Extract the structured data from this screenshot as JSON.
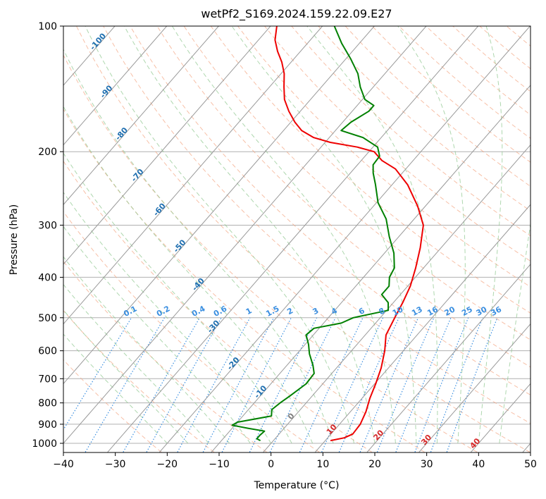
{
  "chart_data": {
    "type": "skew-t log-p",
    "title": "wetPf2_S169.2024.159.22.09.E27",
    "xlabel": "Temperature (°C)",
    "ylabel": "Pressure (hPa)",
    "xlim": [
      -40,
      50
    ],
    "ylim": [
      1050,
      100
    ],
    "y_scale": "log",
    "grid": true,
    "x_ticks": [
      -40,
      -30,
      -20,
      -10,
      0,
      10,
      20,
      30,
      40,
      50
    ],
    "y_ticks": [
      100,
      200,
      300,
      400,
      500,
      600,
      700,
      800,
      900,
      1000
    ],
    "colors": {
      "temperature": "#ee0000",
      "dewpoint": "#008000",
      "isotherm": "#9a9a9a",
      "dry_adiabat": "#f4a582",
      "moist_adiabat": "#93c993",
      "mixing_ratio": "#3b8fe0",
      "isotherm_label": "#1f6fb0",
      "mixing_label": "#3b8fe0",
      "theta_e_label": "#d62728"
    },
    "series": [
      {
        "name": "temperature",
        "points": [
          [
            11.0,
            985
          ],
          [
            13.2,
            970
          ],
          [
            14.2,
            950
          ],
          [
            14.0,
            900
          ],
          [
            13.0,
            840
          ],
          [
            11.5,
            780
          ],
          [
            10.2,
            720
          ],
          [
            8.6,
            660
          ],
          [
            6.4,
            600
          ],
          [
            4.0,
            550
          ],
          [
            2.8,
            500
          ],
          [
            1.8,
            460
          ],
          [
            0.5,
            420
          ],
          [
            -1.5,
            380
          ],
          [
            -4.0,
            340
          ],
          [
            -7.2,
            300
          ],
          [
            -11.5,
            270
          ],
          [
            -17.0,
            240
          ],
          [
            -22.0,
            220
          ],
          [
            -26.0,
            210
          ],
          [
            -27.5,
            205
          ],
          [
            -29.0,
            200
          ],
          [
            -33.0,
            195
          ],
          [
            -39.0,
            190
          ],
          [
            -43.0,
            185
          ],
          [
            -46.5,
            178
          ],
          [
            -49.2,
            170
          ],
          [
            -52.2,
            160
          ],
          [
            -55.0,
            150
          ],
          [
            -57.2,
            140
          ],
          [
            -59.4,
            130
          ],
          [
            -61.8,
            122
          ],
          [
            -64.4,
            115
          ],
          [
            -66.8,
            108
          ],
          [
            -68.8,
            100
          ]
        ]
      },
      {
        "name": "dewpoint",
        "points": [
          [
            -2.5,
            985
          ],
          [
            -3.5,
            975
          ],
          [
            -3.5,
            955
          ],
          [
            -3.3,
            935
          ],
          [
            -7.0,
            920
          ],
          [
            -10.5,
            905
          ],
          [
            -10.0,
            890
          ],
          [
            -4.5,
            860
          ],
          [
            -5.5,
            830
          ],
          [
            -5.0,
            800
          ],
          [
            -4.3,
            770
          ],
          [
            -3.2,
            720
          ],
          [
            -3.4,
            680
          ],
          [
            -5.0,
            650
          ],
          [
            -7.6,
            610
          ],
          [
            -9.3,
            580
          ],
          [
            -11.4,
            550
          ],
          [
            -11.0,
            530
          ],
          [
            -6.6,
            515
          ],
          [
            -5.2,
            500
          ],
          [
            0.3,
            480
          ],
          [
            -1.0,
            460
          ],
          [
            -3.6,
            440
          ],
          [
            -3.6,
            420
          ],
          [
            -5.0,
            400
          ],
          [
            -5.6,
            380
          ],
          [
            -8.2,
            350
          ],
          [
            -11.8,
            320
          ],
          [
            -15.4,
            290
          ],
          [
            -19.7,
            265
          ],
          [
            -23.2,
            240
          ],
          [
            -25.6,
            225
          ],
          [
            -27.0,
            215
          ],
          [
            -27.2,
            205
          ],
          [
            -29.1,
            195
          ],
          [
            -33.5,
            185
          ],
          [
            -38.9,
            178
          ],
          [
            -38.4,
            170
          ],
          [
            -36.8,
            160
          ],
          [
            -36.8,
            155
          ],
          [
            -39.5,
            150
          ],
          [
            -42.5,
            140
          ],
          [
            -45.2,
            130
          ],
          [
            -49.0,
            120
          ],
          [
            -53.4,
            110
          ],
          [
            -57.7,
            100
          ]
        ]
      }
    ],
    "isotherm_labels": [
      "-100",
      "-90",
      "-80",
      "-70",
      "-60",
      "-50",
      "-40",
      "-30",
      "-20",
      "-10",
      "0",
      "10",
      "20",
      "30",
      "40"
    ],
    "mixing_ratio_labels": [
      "0.1",
      "0.2",
      "0.4",
      "0.6",
      "1",
      "1.5",
      "2",
      "3",
      "4",
      "6",
      "8",
      "10",
      "13",
      "16",
      "20",
      "25",
      "30",
      "36"
    ]
  }
}
